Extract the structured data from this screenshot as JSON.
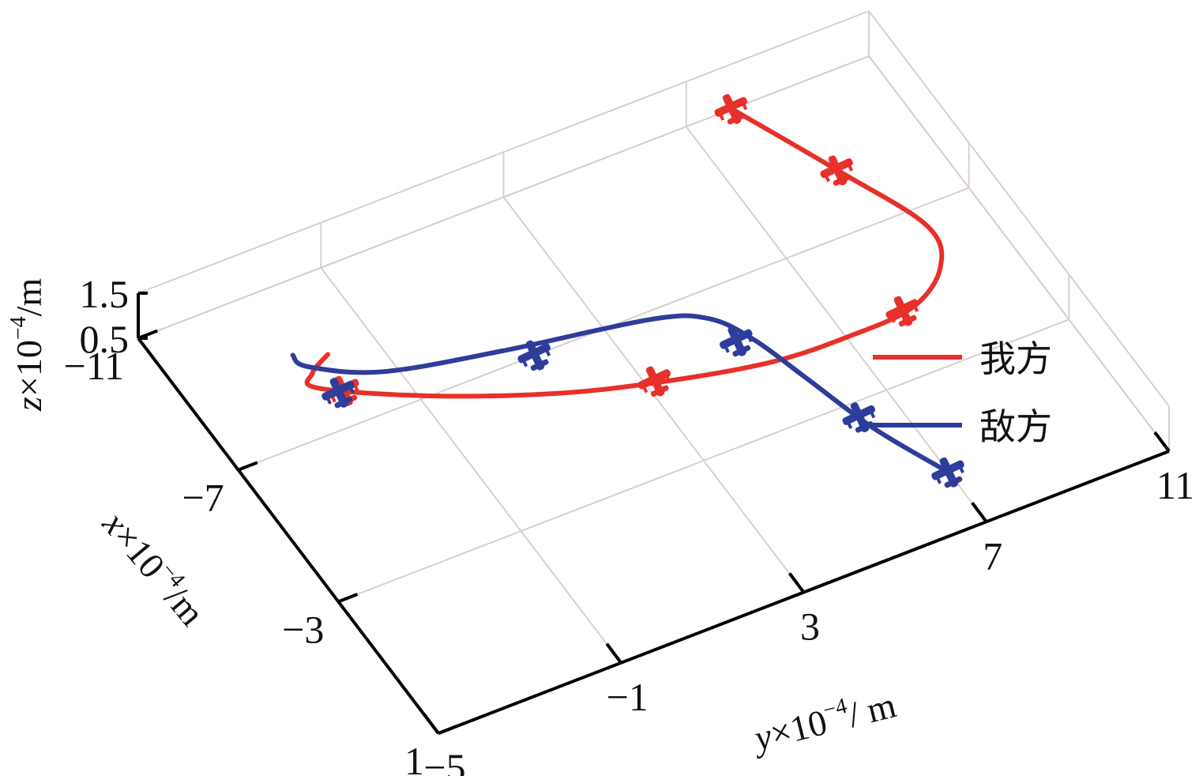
{
  "chart_data": {
    "type": "line",
    "dimensions": "3d",
    "view": "oblique top view",
    "grid": true,
    "legend_position": "right",
    "axes": {
      "x": {
        "label_var": "x",
        "label_rest": "×10",
        "label_exp": "−4",
        "label_unit": "/m",
        "ticks": [
          "−11",
          "−7",
          "−3",
          "1"
        ],
        "lim": [
          -11,
          1
        ]
      },
      "y": {
        "label_var": "y",
        "label_rest": "×10",
        "label_exp": "−4",
        "label_unit": "/ m",
        "ticks": [
          "−5",
          "−1",
          "3",
          "7",
          "11"
        ],
        "lim": [
          -5,
          11
        ]
      },
      "z": {
        "label_var": "z",
        "label_rest": "×10",
        "label_exp": "−4",
        "label_unit": "/m",
        "ticks": [
          "0.5",
          "1.5"
        ],
        "lim": [
          0.5,
          1.5
        ]
      }
    },
    "series": [
      {
        "name": "我方",
        "color": "#e8302a",
        "points_xy": [
          [
            -11.0,
            8.0
          ],
          [
            -8.6,
            9.0
          ],
          [
            -6.5,
            9.8
          ],
          [
            -5.4,
            9.5
          ],
          [
            -4.7,
            8.5
          ],
          [
            -4.6,
            7.0
          ],
          [
            -4.7,
            5.4
          ],
          [
            -5.2,
            3.4
          ],
          [
            -5.9,
            1.4
          ],
          [
            -7.0,
            -0.8
          ],
          [
            -8.2,
            -2.6
          ],
          [
            -8.6,
            -2.5
          ],
          [
            -8.9,
            -2.0
          ]
        ],
        "markers_xy": [
          [
            -11.0,
            8.0
          ],
          [
            -8.6,
            9.0
          ],
          [
            -4.7,
            8.3
          ],
          [
            -5.3,
            3.2
          ],
          [
            -7.9,
            -2.2
          ]
        ]
      },
      {
        "name": "敌方",
        "color": "#2e3d9a",
        "points_xy": [
          [
            -9.2,
            -2.6
          ],
          [
            -8.8,
            -2.5
          ],
          [
            -8.0,
            -1.3
          ],
          [
            -7.4,
            1.0
          ],
          [
            -6.8,
            3.9
          ],
          [
            -6.3,
            4.9
          ],
          [
            -5.4,
            5.4
          ],
          [
            -4.0,
            5.8
          ],
          [
            -2.2,
            6.3
          ],
          [
            -0.5,
            7.0
          ]
        ],
        "markers_xy": [
          [
            -7.9,
            -2.3
          ],
          [
            -7.0,
            1.5
          ],
          [
            -5.5,
            5.1
          ],
          [
            -2.6,
            6.2
          ],
          [
            -0.5,
            7.0
          ]
        ]
      }
    ]
  }
}
